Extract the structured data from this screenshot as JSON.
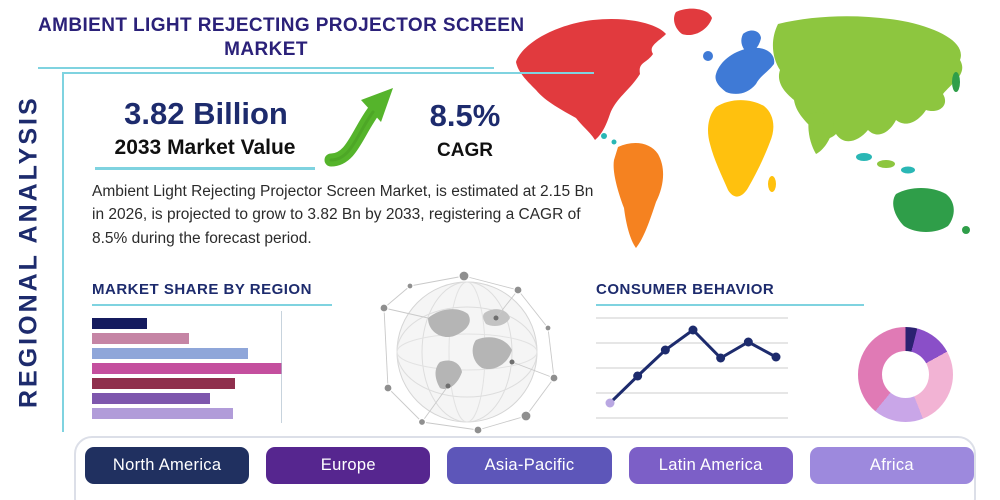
{
  "theme": {
    "navy": "#1d2b6d",
    "title": "#2b2179",
    "teal": "#7fd3e0",
    "green": "#55b42b",
    "text": "#2b2b2b"
  },
  "header": {
    "title_line1": "AMBIENT LIGHT REJECTING PROJECTOR SCREEN",
    "title_line2": "MARKET",
    "side_label": "REGIONAL ANALYSIS"
  },
  "highlights": {
    "value": "3.82 Billion",
    "value_caption": "2033 Market Value",
    "cagr": "8.5%",
    "cagr_caption": "CAGR"
  },
  "summary": "Ambient Light Rejecting Projector Screen Market, is estimated at 2.15 Bn in 2026, is projected to grow to 3.82 Bn by 2033, registering a CAGR of 8.5% during the forecast period.",
  "region_buttons": [
    {
      "label": "North America",
      "color": "#203060"
    },
    {
      "label": "Europe",
      "color": "#56268f"
    },
    {
      "label": "Asia-Pacific",
      "color": "#5d56b9"
    },
    {
      "label": "Latin America",
      "color": "#7c5fc7"
    },
    {
      "label": "Africa",
      "color": "#9d89dd"
    }
  ],
  "chart_data": [
    {
      "id": "market_share_by_region",
      "type": "bar",
      "orientation": "horizontal",
      "title": "MARKET SHARE BY REGION",
      "values": [
        29,
        51,
        82,
        100,
        75,
        62,
        74
      ],
      "colors": [
        "#151b5e",
        "#c585a5",
        "#8fa6d9",
        "#c44f9e",
        "#8f2f4d",
        "#7e57ad",
        "#b19cd9"
      ],
      "xlim": [
        0,
        100
      ],
      "grid": true
    },
    {
      "id": "consumer_behavior",
      "type": "line",
      "title": "CONSUMER BEHAVIOR",
      "x": [
        1,
        2,
        3,
        4,
        5,
        6,
        7
      ],
      "values": [
        15,
        42,
        68,
        88,
        60,
        76,
        61
      ],
      "ylim": [
        0,
        100
      ],
      "grid": true,
      "line_color": "#1d2b6d",
      "first_marker_color": "#b9a7e2"
    },
    {
      "id": "regional_split_donut",
      "type": "pie",
      "donut": true,
      "values": [
        4,
        13,
        27,
        17,
        39
      ],
      "colors": [
        "#2b2171",
        "#8a4fc8",
        "#f2b3d4",
        "#c9a6e8",
        "#e07ab5"
      ]
    }
  ]
}
